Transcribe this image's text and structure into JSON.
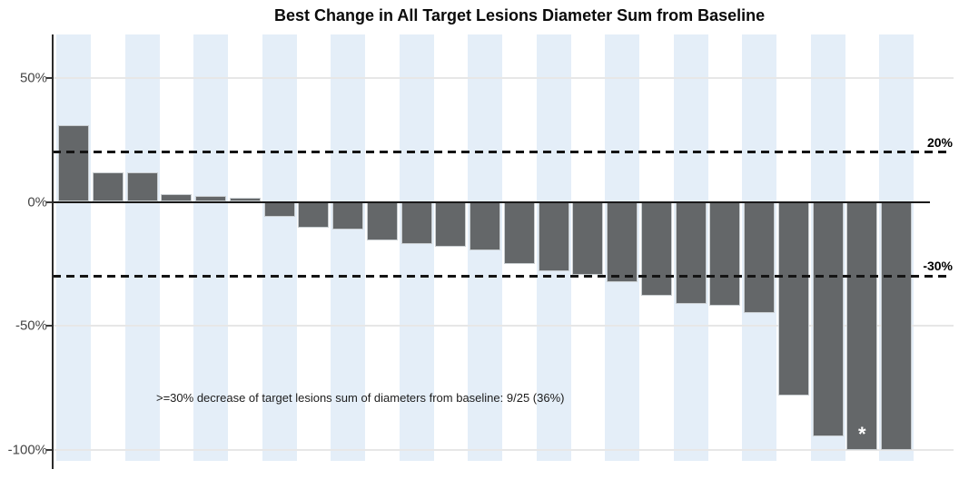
{
  "title": "Best Change in All Target Lesions Diameter Sum from Baseline",
  "annotation": ">=30% decrease of target lesions sum of diameters from baseline: 9/25 (36%)",
  "colors": {
    "bar": "#646769",
    "stripe": "#e4eef8",
    "gridline": "#e7e7e7",
    "zero_line": "#1a1a1a",
    "dashed_line": "#141414",
    "axis": "#2b2b2b",
    "tick_label": "#454545",
    "reference_label": "#000000",
    "star": "#ffffff"
  },
  "chart_data": {
    "type": "bar",
    "title": "Best Change in All Target Lesions Diameter Sum from Baseline",
    "xlabel": "",
    "ylabel": "",
    "ylim": [
      -105,
      67
    ],
    "grid": "horizontal-light",
    "background_bands": "alternating light blue per subject",
    "yticks": [
      {
        "value": 50,
        "label": "50%"
      },
      {
        "value": 0,
        "label": "0%"
      },
      {
        "value": -50,
        "label": "-50%"
      },
      {
        "value": -100,
        "label": "-100%"
      }
    ],
    "reference_lines": [
      {
        "value": 20,
        "label": "20%",
        "style": "dashed"
      },
      {
        "value": -30,
        "label": "-30%",
        "style": "dashed"
      }
    ],
    "values": [
      31,
      12,
      12,
      3,
      2.5,
      1.5,
      -6,
      -10.5,
      -11,
      -15.5,
      -17,
      -18,
      -19.5,
      -25,
      -28,
      -29.5,
      -32.5,
      -38,
      -41,
      -42,
      -45,
      -78,
      -94.5,
      -100,
      -100
    ],
    "starred_bar_index": 23,
    "star_symbol": "*",
    "annotation": ">=30% decrease of target lesions sum of diameters from baseline: 9/25 (36%)"
  }
}
